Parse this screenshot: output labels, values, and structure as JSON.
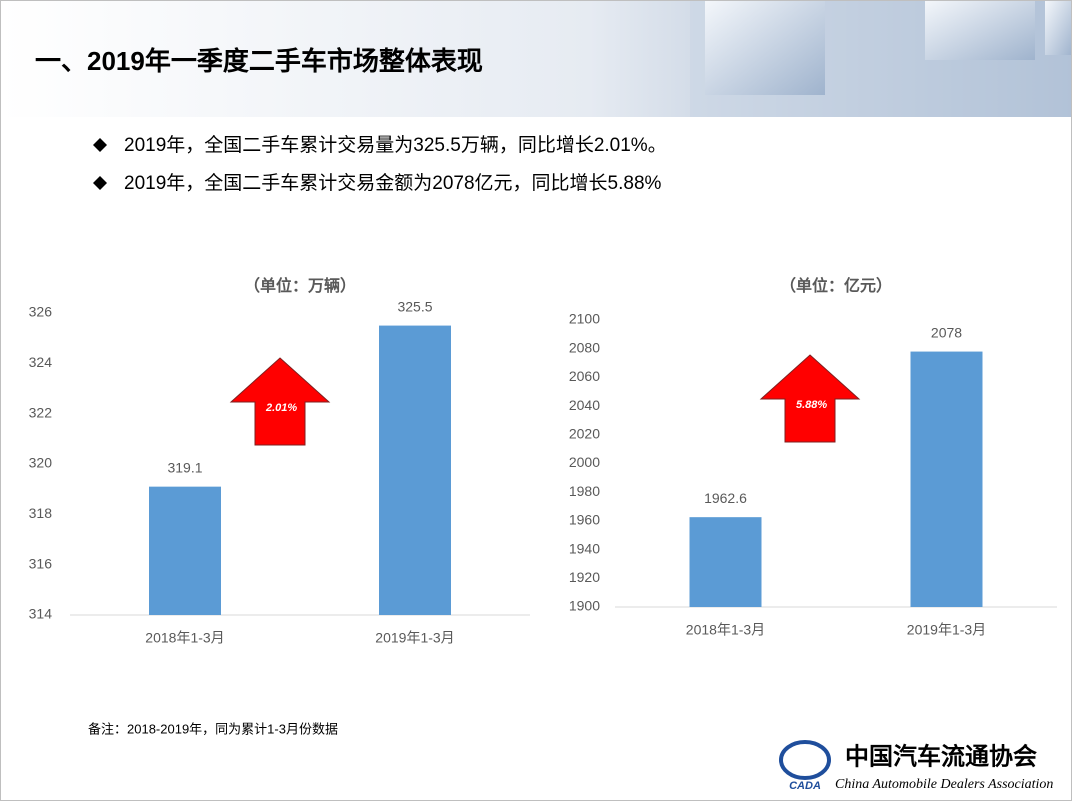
{
  "header": {
    "title": "一、2019年一季度二手车市场整体表现"
  },
  "bullets": [
    "2019年，全国二手车累计交易量为325.5万辆，同比增长2.01%。",
    "2019年，全国二手车累计交易金额为2078亿元，同比增长5.88%"
  ],
  "chart_data": [
    {
      "type": "bar",
      "title": "（单位：万辆）",
      "categories": [
        "2018年1-3月",
        "2019年1-3月"
      ],
      "values": [
        319.1,
        325.5
      ],
      "color": "#5b9bd5",
      "ylim": [
        314,
        326
      ],
      "yticks": [
        314,
        316,
        318,
        320,
        322,
        324,
        326
      ],
      "annotation": "2.01%"
    },
    {
      "type": "bar",
      "title": "（单位：亿元）",
      "categories": [
        "2018年1-3月",
        "2019年1-3月"
      ],
      "values": [
        1962.6,
        2078
      ],
      "color": "#5b9bd5",
      "ylim": [
        1900,
        2100
      ],
      "yticks": [
        1900,
        1920,
        1940,
        1960,
        1980,
        2000,
        2020,
        2040,
        2060,
        2080,
        2100
      ],
      "annotation": "5.88%"
    }
  ],
  "note": "备注：2018-2019年，同为累计1-3月份数据",
  "logo": {
    "abbr": "CADA",
    "name_cn": "中国汽车流通协会",
    "name_en": "China Automobile Dealers Association"
  }
}
